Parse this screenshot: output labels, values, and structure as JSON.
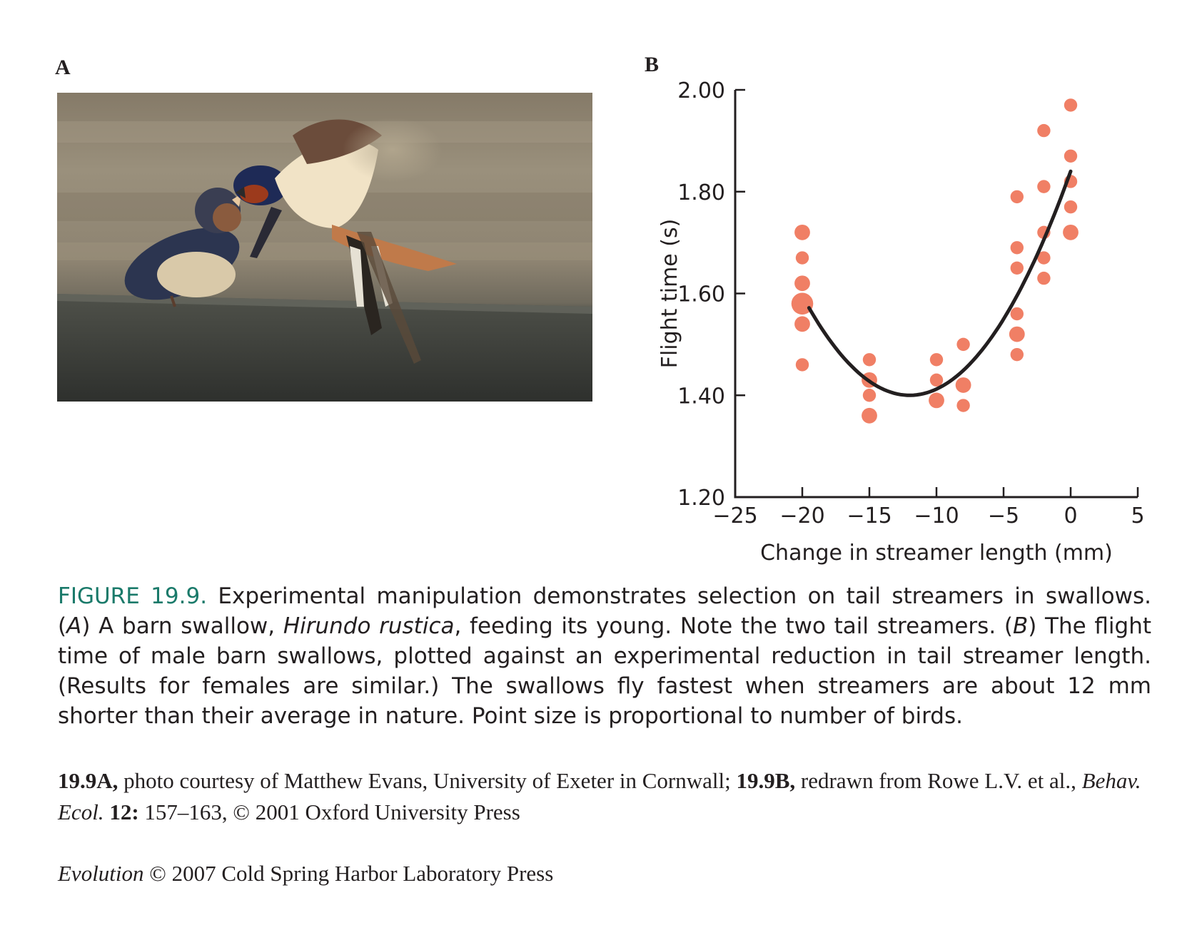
{
  "panel_a_label": "A",
  "panel_b_label": "B",
  "photo": {
    "subject": "barn-swallow-feeding-young"
  },
  "chart_data": {
    "type": "scatter",
    "xlabel": "Change in streamer length (mm)",
    "ylabel": "Flight time (s)",
    "xlim": [
      -25,
      5
    ],
    "ylim": [
      1.2,
      2.0
    ],
    "x_ticks": [
      -25,
      -20,
      -15,
      -10,
      -5,
      0,
      5
    ],
    "x_tick_labels": [
      "−25",
      "−20",
      "−15",
      "−10",
      "−5",
      "0",
      "5"
    ],
    "y_ticks": [
      1.2,
      1.4,
      1.6,
      1.8,
      2.0
    ],
    "y_tick_labels": [
      "1.20",
      "1.40",
      "1.60",
      "1.80",
      "2.00"
    ],
    "grid": false,
    "point_color": "#f07f65",
    "curve_color": "#231f20",
    "points": [
      {
        "x": -20,
        "y": 1.72,
        "n": 2
      },
      {
        "x": -20,
        "y": 1.67,
        "n": 1
      },
      {
        "x": -20,
        "y": 1.62,
        "n": 2
      },
      {
        "x": -20,
        "y": 1.58,
        "n": 6
      },
      {
        "x": -20,
        "y": 1.54,
        "n": 2
      },
      {
        "x": -20,
        "y": 1.46,
        "n": 1
      },
      {
        "x": -15,
        "y": 1.47,
        "n": 1
      },
      {
        "x": -15,
        "y": 1.43,
        "n": 2
      },
      {
        "x": -15,
        "y": 1.4,
        "n": 1
      },
      {
        "x": -15,
        "y": 1.36,
        "n": 2
      },
      {
        "x": -10,
        "y": 1.47,
        "n": 1
      },
      {
        "x": -10,
        "y": 1.43,
        "n": 1
      },
      {
        "x": -10,
        "y": 1.39,
        "n": 2
      },
      {
        "x": -8,
        "y": 1.5,
        "n": 1
      },
      {
        "x": -8,
        "y": 1.42,
        "n": 2
      },
      {
        "x": -8,
        "y": 1.38,
        "n": 1
      },
      {
        "x": -4,
        "y": 1.79,
        "n": 1
      },
      {
        "x": -4,
        "y": 1.69,
        "n": 1
      },
      {
        "x": -4,
        "y": 1.65,
        "n": 1
      },
      {
        "x": -4,
        "y": 1.56,
        "n": 1
      },
      {
        "x": -4,
        "y": 1.52,
        "n": 2
      },
      {
        "x": -4,
        "y": 1.48,
        "n": 1
      },
      {
        "x": -2,
        "y": 1.92,
        "n": 1
      },
      {
        "x": -2,
        "y": 1.81,
        "n": 1
      },
      {
        "x": -2,
        "y": 1.72,
        "n": 1
      },
      {
        "x": -2,
        "y": 1.67,
        "n": 1
      },
      {
        "x": -2,
        "y": 1.63,
        "n": 1
      },
      {
        "x": 0,
        "y": 1.97,
        "n": 1
      },
      {
        "x": 0,
        "y": 1.87,
        "n": 1
      },
      {
        "x": 0,
        "y": 1.82,
        "n": 1
      },
      {
        "x": 0,
        "y": 1.77,
        "n": 1
      },
      {
        "x": 0,
        "y": 1.72,
        "n": 2
      }
    ],
    "fit_curve": {
      "type": "quadratic",
      "x_range": [
        -19.5,
        0
      ],
      "vertex_x": -12,
      "vertex_y": 1.4,
      "y_at_0": 1.84
    }
  },
  "caption": {
    "figure_label": "FIGURE 19.9.",
    "seg1": " Experimental manipulation demonstrates selection on tail streamers in swallows. (",
    "seg2": "A",
    "seg3": ") A barn swallow, ",
    "seg4": "Hirundo rustica",
    "seg5": ", feeding its young. Note the two tail streamers. (",
    "seg6": "B",
    "seg7": ") The flight time of male barn swallows, plotted against an experimental reduction in tail streamer length. (Results for females are similar.) The swallows fly fastest when streamers are about 12 mm shorter than their average in nature. Point size is proportional to number of birds."
  },
  "credit": {
    "b1": "19.9A,",
    "t1": " photo courtesy of Matthew Evans, University of Exeter in Cornwall; ",
    "b2": "19.9B,",
    "t2": " redrawn from Rowe L.V. et al., ",
    "i1": "Behav. Ecol.",
    "t3": " ",
    "b3": "12:",
    "t4": " 157–163, © 2001 Oxford University Press"
  },
  "copyright": {
    "book": "Evolution",
    "rest": " © 2007 Cold Spring Harbor Laboratory Press"
  }
}
